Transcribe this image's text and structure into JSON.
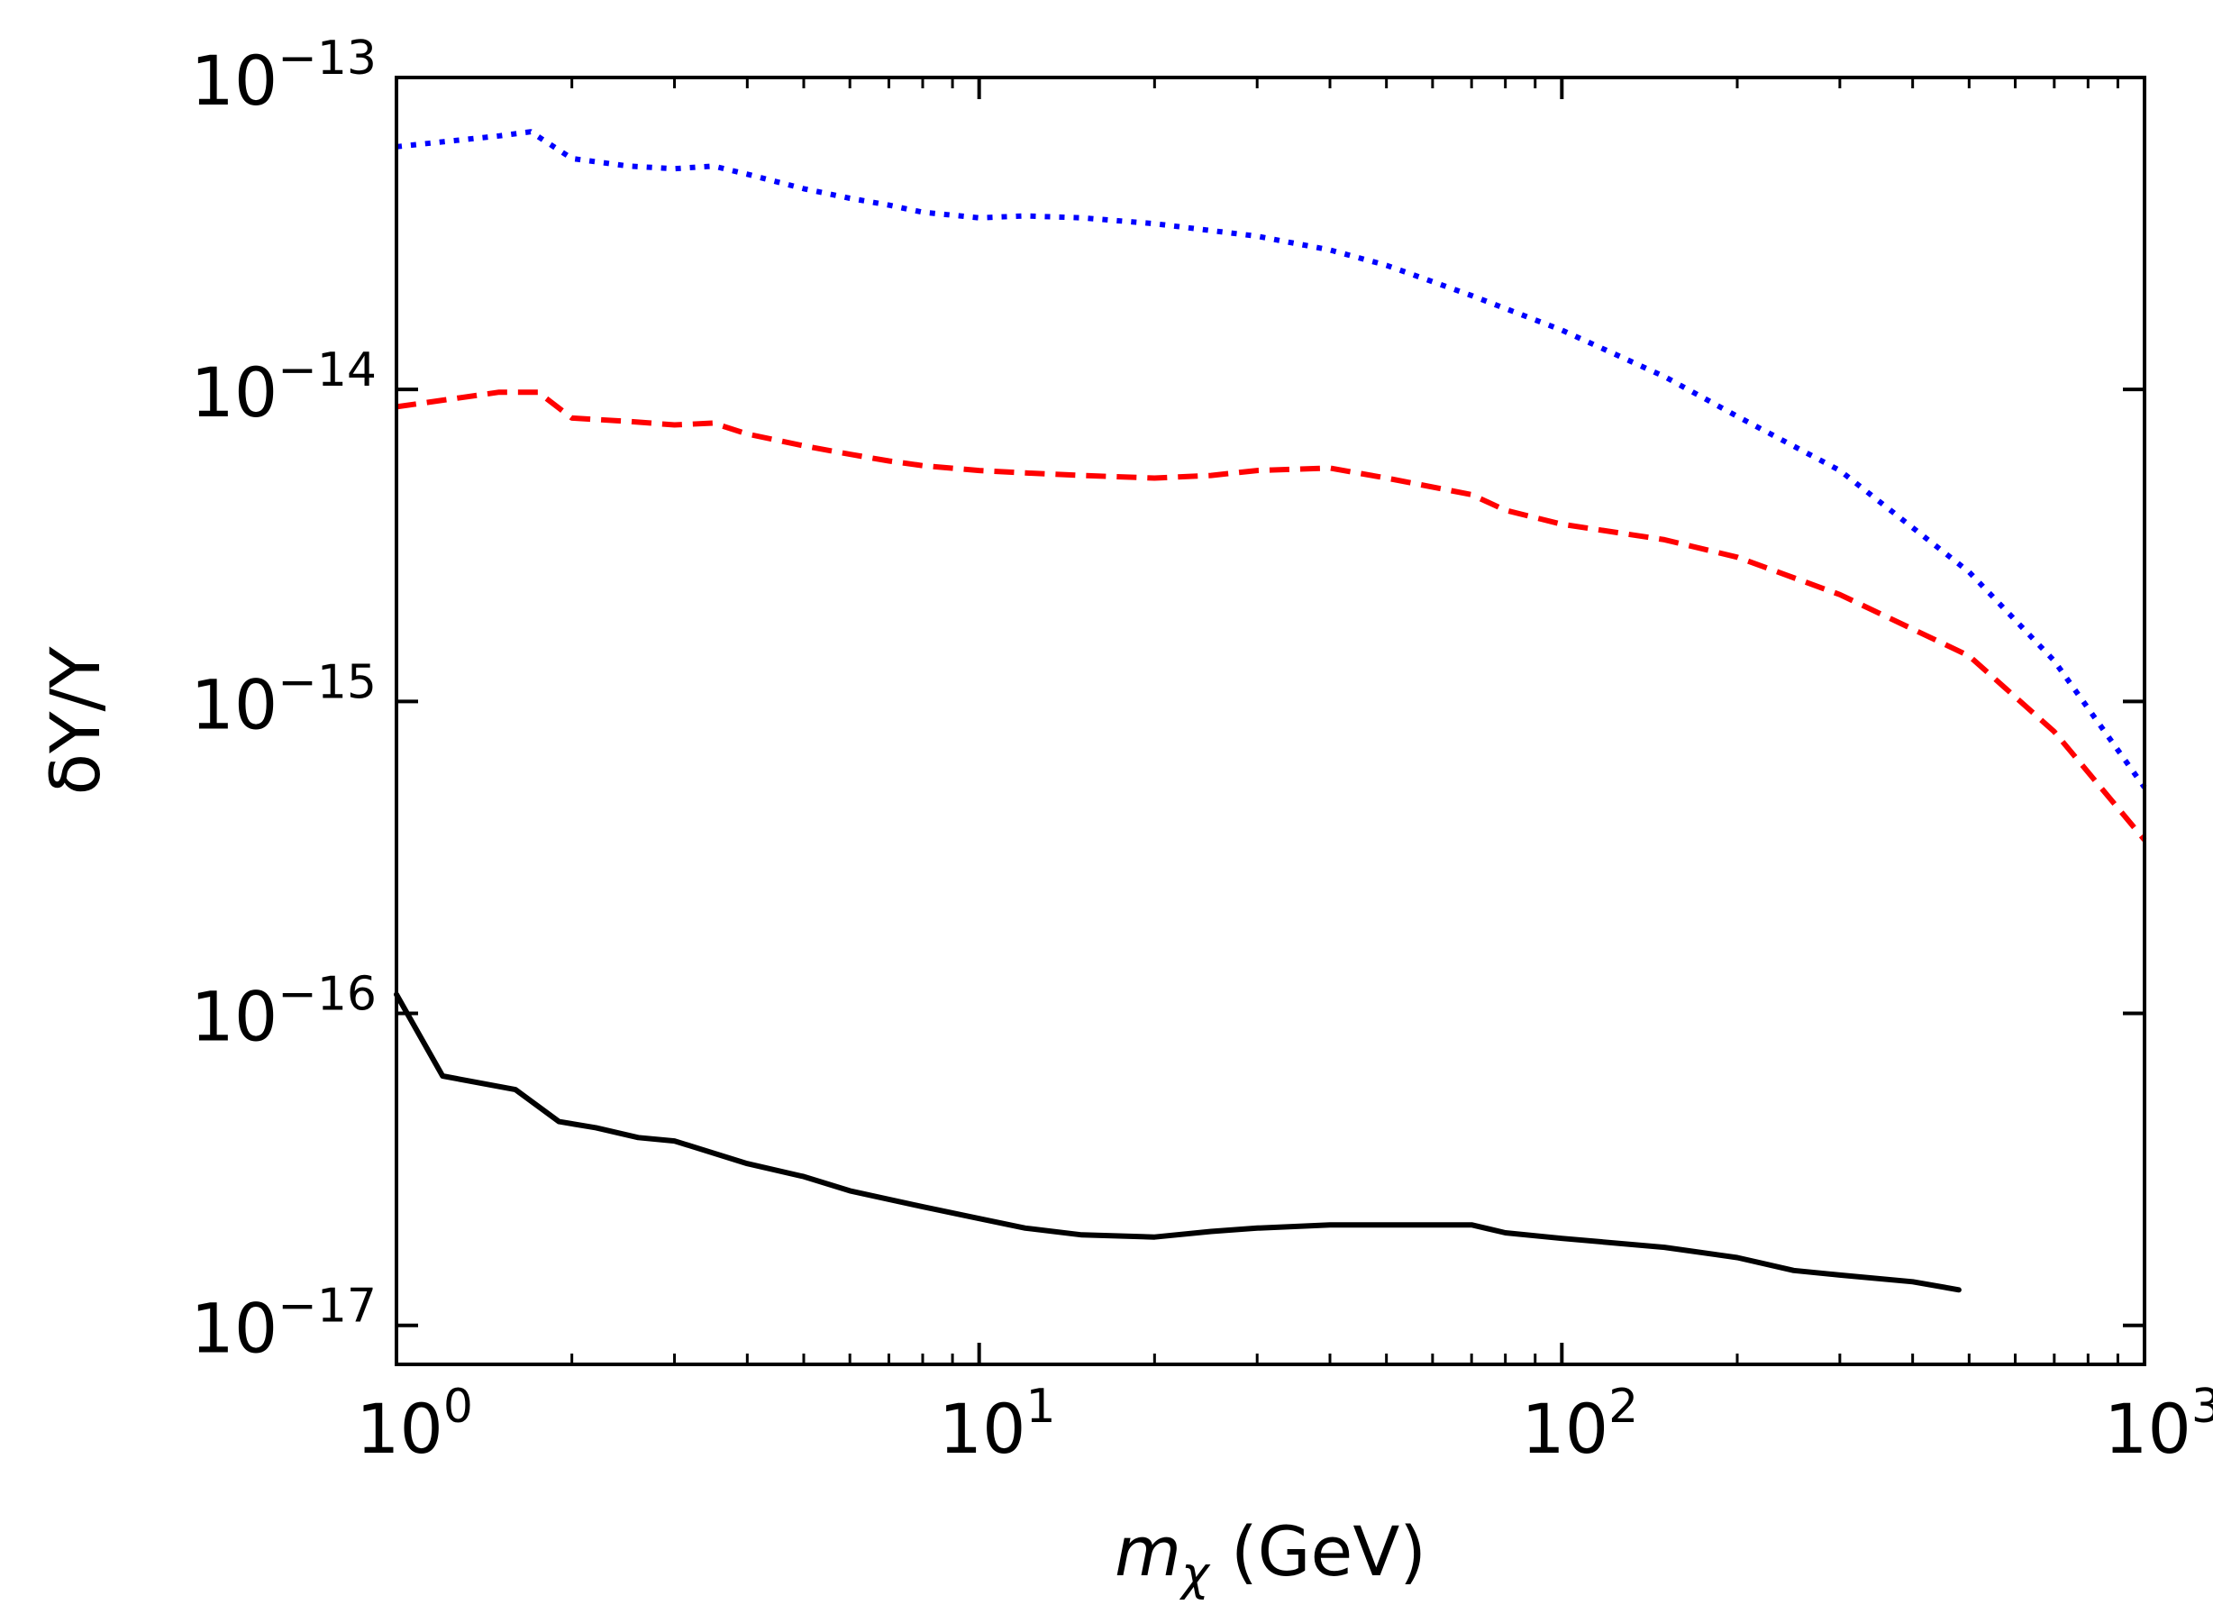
{
  "chart_data": {
    "type": "line",
    "title": "",
    "xlabel_var": "m",
    "xlabel_sub": "χ",
    "xlabel_unit": " (GeV)",
    "ylabel": "δY/Y",
    "xscale": "log",
    "yscale": "log",
    "xlim": [
      1,
      1000
    ],
    "ylim": [
      7.5e-18,
      1e-13
    ],
    "x_ticks": [
      {
        "value": 1,
        "base": "10",
        "exp": "0"
      },
      {
        "value": 10,
        "base": "10",
        "exp": "1"
      },
      {
        "value": 100,
        "base": "10",
        "exp": "2"
      },
      {
        "value": 1000,
        "base": "10",
        "exp": "3"
      }
    ],
    "y_ticks": [
      {
        "value": 1e-17,
        "base": "10",
        "exp": "−17"
      },
      {
        "value": 1e-16,
        "base": "10",
        "exp": "−16"
      },
      {
        "value": 1e-15,
        "base": "10",
        "exp": "−15"
      },
      {
        "value": 1e-14,
        "base": "10",
        "exp": "−14"
      },
      {
        "value": 1e-13,
        "base": "10",
        "exp": "−13"
      }
    ],
    "series": [
      {
        "name": "blue-dotted",
        "color": "#0000ff",
        "style": "dotted",
        "x": [
          1,
          1.5,
          1.7,
          2,
          2.5,
          3,
          3.5,
          4,
          5,
          6,
          7,
          8,
          10,
          12,
          15,
          20,
          30,
          40,
          50,
          70,
          100,
          150,
          200,
          300,
          500,
          700,
          1000
        ],
        "y": [
          6e-14,
          6.5e-14,
          6.7e-14,
          5.5e-14,
          5.2e-14,
          5.1e-14,
          5.2e-14,
          4.9e-14,
          4.4e-14,
          4.1e-14,
          3.9e-14,
          3.7e-14,
          3.55e-14,
          3.6e-14,
          3.55e-14,
          3.4e-14,
          3.1e-14,
          2.8e-14,
          2.5e-14,
          2e-14,
          1.55e-14,
          1.1e-14,
          8.2e-15,
          5.5e-15,
          2.6e-15,
          1.35e-15,
          5.3e-16
        ]
      },
      {
        "name": "red-dashed",
        "color": "#ff0000",
        "style": "dashed",
        "x": [
          1,
          1.5,
          1.75,
          2,
          2.5,
          3,
          3.5,
          4,
          5,
          6,
          7,
          8,
          10,
          12,
          15,
          20,
          25,
          30,
          40,
          50,
          70,
          80,
          100,
          150,
          200,
          300,
          500,
          700,
          1000
        ],
        "y": [
          8.8e-15,
          9.8e-15,
          9.8e-15,
          8.1e-15,
          7.9e-15,
          7.7e-15,
          7.8e-15,
          7.2e-15,
          6.6e-15,
          6.2e-15,
          5.9e-15,
          5.7e-15,
          5.5e-15,
          5.4e-15,
          5.3e-15,
          5.2e-15,
          5.3e-15,
          5.5e-15,
          5.6e-15,
          5.2e-15,
          4.6e-15,
          4.1e-15,
          3.7e-15,
          3.3e-15,
          2.9e-15,
          2.2e-15,
          1.4e-15,
          8e-16,
          3.6e-16
        ]
      },
      {
        "name": "black-solid",
        "color": "#000000",
        "style": "solid",
        "x": [
          1,
          1.2,
          1.6,
          1.9,
          2.2,
          2.6,
          3,
          4,
          5,
          6,
          8,
          10,
          12,
          15,
          20,
          25,
          30,
          40,
          50,
          70,
          80,
          100,
          150,
          200,
          250,
          300,
          400,
          480
        ],
        "y": [
          1.15e-16,
          6.3e-17,
          5.7e-17,
          4.5e-17,
          4.3e-17,
          4e-17,
          3.9e-17,
          3.3e-17,
          3e-17,
          2.7e-17,
          2.4e-17,
          2.2e-17,
          2.05e-17,
          1.95e-17,
          1.92e-17,
          2e-17,
          2.05e-17,
          2.1e-17,
          2.1e-17,
          2.1e-17,
          1.98e-17,
          1.9e-17,
          1.78e-17,
          1.65e-17,
          1.5e-17,
          1.45e-17,
          1.38e-17,
          1.3e-17
        ]
      }
    ]
  }
}
